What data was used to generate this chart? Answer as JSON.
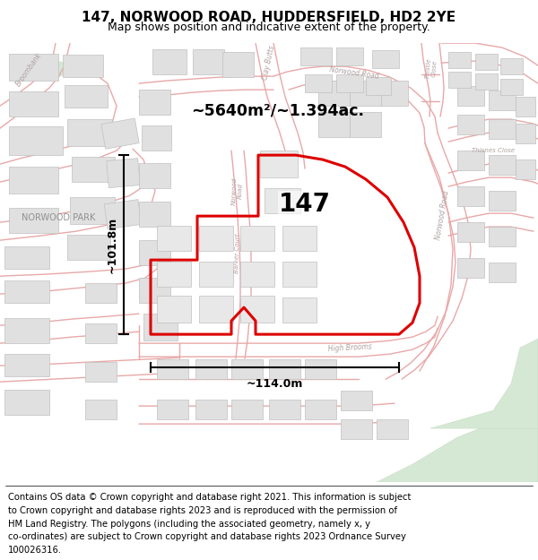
{
  "title": "147, NORWOOD ROAD, HUDDERSFIELD, HD2 2YE",
  "subtitle": "Map shows position and indicative extent of the property.",
  "footer_lines": [
    "Contains OS data © Crown copyright and database right 2021. This information is subject",
    "to Crown copyright and database rights 2023 and is reproduced with the permission of",
    "HM Land Registry. The polygons (including the associated geometry, namely x, y",
    "co-ordinates) are subject to Crown copyright and database rights 2023 Ordnance Survey",
    "100026316."
  ],
  "area_label": "~5640m²/~1.394ac.",
  "property_number": "147",
  "width_label": "~114.0m",
  "height_label": "~101.8m",
  "map_bg": "#f7f7f5",
  "road_color": "#e8a8a8",
  "building_fc": "#e0e0e0",
  "building_ec": "#c0c0c0",
  "green_color": "#d4e8d4",
  "boundary_color": "#dd0000",
  "title_fontsize": 11,
  "subtitle_fontsize": 9,
  "footer_fontsize": 7.5,
  "label_color": "#aaaaaa",
  "norwood_park_label": "NORWOOD PARK"
}
